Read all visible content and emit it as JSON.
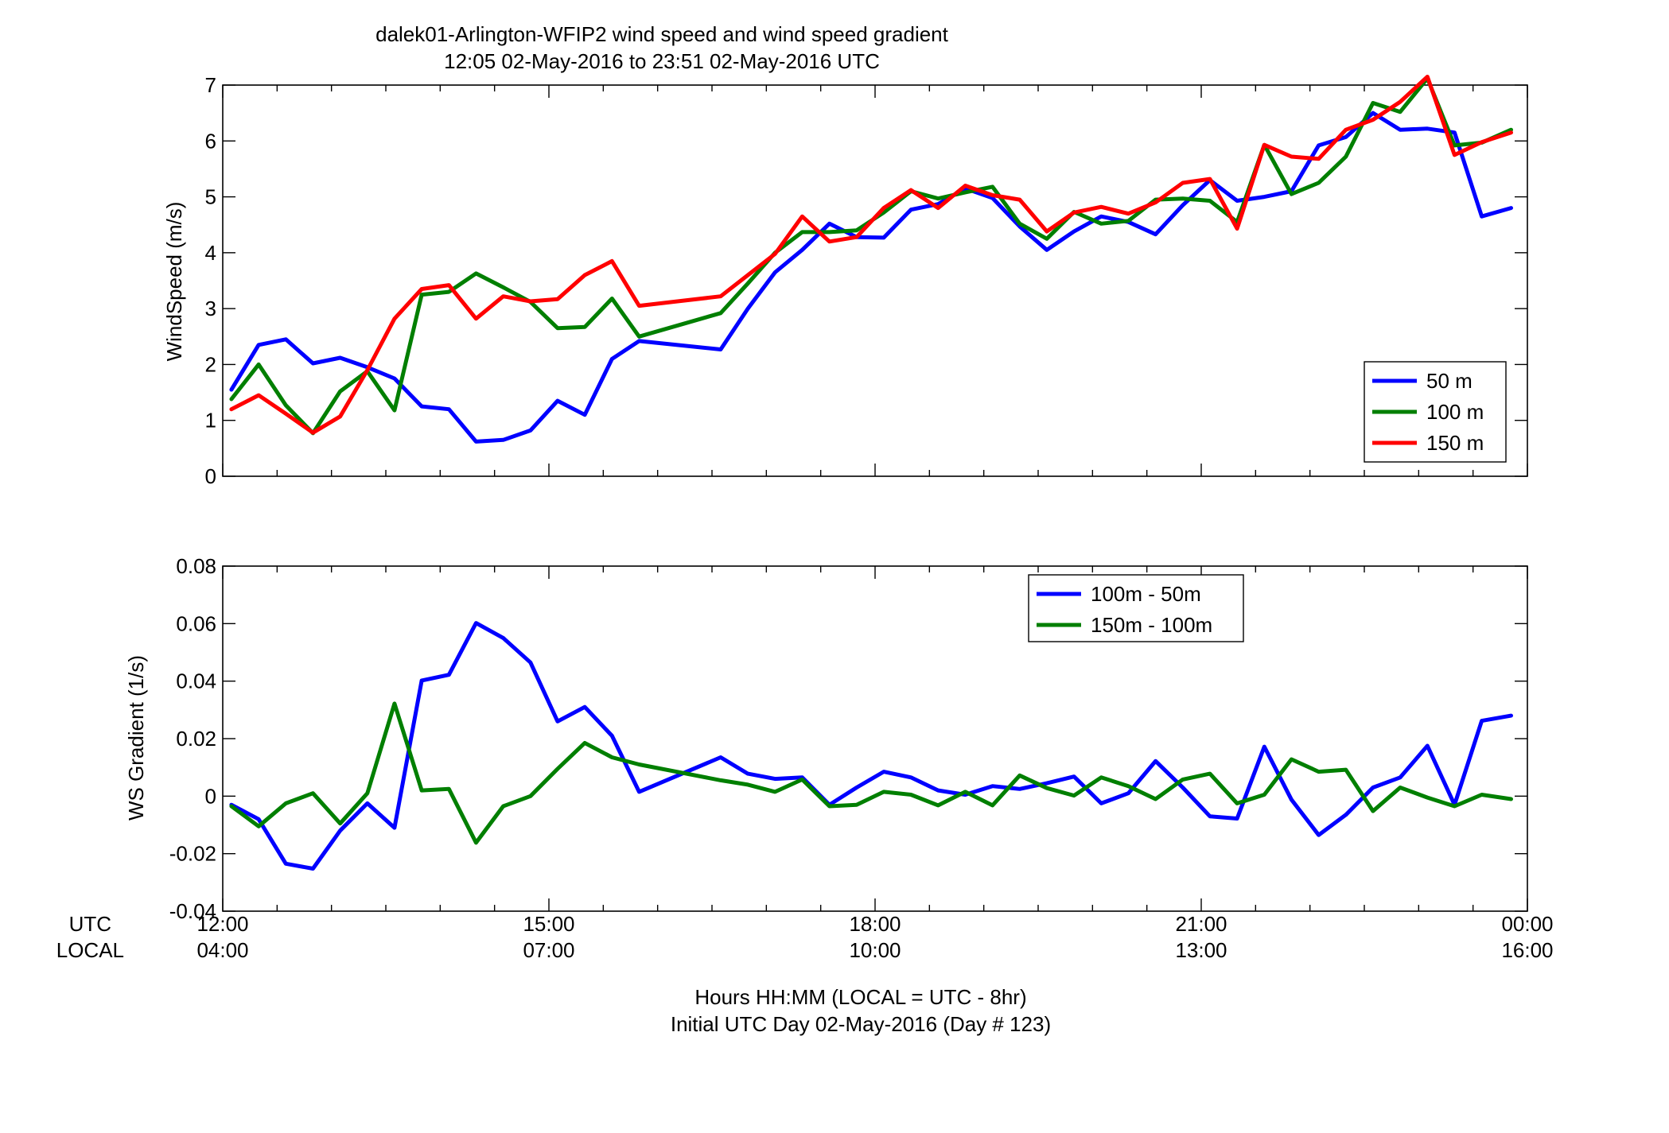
{
  "figure": {
    "title_line1": "dalek01-Arlington-WFIP2  wind speed and wind speed gradient",
    "title_line2": "12:05 02-May-2016 to 23:51 02-May-2016  UTC",
    "xlabel_line1": "Hours HH:MM  (LOCAL = UTC - 8hr)",
    "xlabel_line2": "Initial UTC Day 02-May-2016 (Day # 123)",
    "utc_row_label": "UTC",
    "local_row_label": "LOCAL",
    "utc_ticks": [
      "12:00",
      "15:00",
      "18:00",
      "21:00",
      "00:00"
    ],
    "local_ticks": [
      "04:00",
      "07:00",
      "10:00",
      "13:00",
      "16:00"
    ]
  },
  "chart_data": [
    {
      "type": "line",
      "ylabel": "WindSpeed (m/s)",
      "xlim": [
        12,
        24
      ],
      "ylim": [
        0,
        7
      ],
      "yticks": [
        0,
        1,
        2,
        3,
        4,
        5,
        6,
        7
      ],
      "legend_position": "bottom-right",
      "x": [
        12.08,
        12.33,
        12.58,
        12.83,
        13.08,
        13.33,
        13.58,
        13.83,
        14.08,
        14.33,
        14.58,
        14.83,
        15.08,
        15.33,
        15.58,
        15.83,
        16.58,
        16.83,
        17.08,
        17.33,
        17.58,
        17.83,
        18.08,
        18.33,
        18.58,
        18.83,
        19.08,
        19.33,
        19.58,
        19.83,
        20.08,
        20.33,
        20.58,
        20.83,
        21.08,
        21.33,
        21.58,
        21.83,
        22.08,
        22.33,
        22.58,
        22.83,
        23.08,
        23.33,
        23.58,
        23.85
      ],
      "series": [
        {
          "name": "50 m",
          "color": "#0000ff",
          "values": [
            1.55,
            2.35,
            2.45,
            2.02,
            2.12,
            1.95,
            1.75,
            1.25,
            1.2,
            0.62,
            0.65,
            0.82,
            1.35,
            1.1,
            2.1,
            2.42,
            2.27,
            3.0,
            3.65,
            4.05,
            4.52,
            4.28,
            4.27,
            4.77,
            4.87,
            5.15,
            4.98,
            4.47,
            4.05,
            4.38,
            4.65,
            4.55,
            4.33,
            4.85,
            5.3,
            4.93,
            5.0,
            5.1,
            5.92,
            6.07,
            6.5,
            6.2,
            6.22,
            6.15,
            4.65,
            4.8
          ]
        },
        {
          "name": "100 m",
          "color": "#007f00",
          "values": [
            1.38,
            2.0,
            1.27,
            0.77,
            1.52,
            1.88,
            1.18,
            3.25,
            3.3,
            3.63,
            3.38,
            3.12,
            2.65,
            2.67,
            3.18,
            2.5,
            2.92,
            3.45,
            4.0,
            4.37,
            4.37,
            4.4,
            4.72,
            5.1,
            4.97,
            5.08,
            5.18,
            4.52,
            4.25,
            4.73,
            4.52,
            4.57,
            4.95,
            4.97,
            4.93,
            4.55,
            5.93,
            5.05,
            5.25,
            5.72,
            6.68,
            6.52,
            7.12,
            5.92,
            5.97,
            6.2
          ]
        },
        {
          "name": "150 m",
          "color": "#ff0000",
          "values": [
            1.2,
            1.45,
            1.12,
            0.78,
            1.07,
            1.9,
            2.82,
            3.35,
            3.42,
            2.82,
            3.22,
            3.13,
            3.17,
            3.6,
            3.85,
            3.05,
            3.22,
            3.6,
            3.98,
            4.65,
            4.2,
            4.28,
            4.8,
            5.12,
            4.8,
            5.2,
            5.03,
            4.95,
            4.38,
            4.72,
            4.82,
            4.7,
            4.9,
            5.25,
            5.32,
            4.43,
            5.93,
            5.72,
            5.68,
            6.2,
            6.38,
            6.7,
            7.15,
            5.75,
            5.98,
            6.15
          ]
        }
      ]
    },
    {
      "type": "line",
      "ylabel": "WS Gradient (1/s)",
      "xlim": [
        12,
        24
      ],
      "ylim": [
        -0.04,
        0.08
      ],
      "yticks": [
        -0.04,
        -0.02,
        0,
        0.02,
        0.04,
        0.06,
        0.08
      ],
      "ytick_labels": [
        "-0.04",
        "-0.02",
        "0",
        "0.02",
        "0.04",
        "0.06",
        "0.08"
      ],
      "legend_position": "top-center",
      "x": [
        12.08,
        12.33,
        12.58,
        12.83,
        13.08,
        13.33,
        13.58,
        13.83,
        14.08,
        14.33,
        14.58,
        14.83,
        15.08,
        15.33,
        15.58,
        15.83,
        16.58,
        16.83,
        17.08,
        17.33,
        17.58,
        17.83,
        18.08,
        18.33,
        18.58,
        18.83,
        19.08,
        19.33,
        19.58,
        19.83,
        20.08,
        20.33,
        20.58,
        20.83,
        21.08,
        21.33,
        21.58,
        21.83,
        22.08,
        22.33,
        22.58,
        22.83,
        23.08,
        23.33,
        23.58,
        23.85
      ],
      "series": [
        {
          "name": "100m - 50m",
          "color": "#0000ff",
          "values": [
            -0.003,
            -0.008,
            -0.0235,
            -0.0252,
            -0.012,
            -0.0025,
            -0.011,
            0.0402,
            0.0422,
            0.0602,
            0.055,
            0.0465,
            0.026,
            0.031,
            0.021,
            0.0015,
            0.0135,
            0.0078,
            0.006,
            0.0065,
            -0.003,
            0.003,
            0.0085,
            0.0065,
            0.002,
            0.0005,
            0.0035,
            0.0025,
            0.0045,
            0.0068,
            -0.0025,
            0.001,
            0.0122,
            0.003,
            -0.007,
            -0.0078,
            0.0172,
            -0.0012,
            -0.0135,
            -0.0065,
            0.003,
            0.0065,
            0.0175,
            -0.003,
            0.0262,
            0.028
          ]
        },
        {
          "name": "150m - 100m",
          "color": "#007f00",
          "values": [
            -0.0035,
            -0.0105,
            -0.0025,
            0.001,
            -0.0095,
            0.001,
            0.0322,
            0.002,
            0.0025,
            -0.0162,
            -0.0035,
            0.0,
            0.0095,
            0.0185,
            0.0135,
            0.011,
            0.0055,
            0.004,
            0.0015,
            0.0058,
            -0.0035,
            -0.003,
            0.0015,
            0.0005,
            -0.0032,
            0.0015,
            -0.0032,
            0.0072,
            0.0028,
            0.0002,
            0.0065,
            0.0035,
            -0.001,
            0.0058,
            0.0078,
            -0.0025,
            0.0005,
            0.0128,
            0.0085,
            0.0092,
            -0.0052,
            0.003,
            -0.0005,
            -0.0035,
            0.0005,
            -0.001
          ]
        }
      ]
    }
  ]
}
